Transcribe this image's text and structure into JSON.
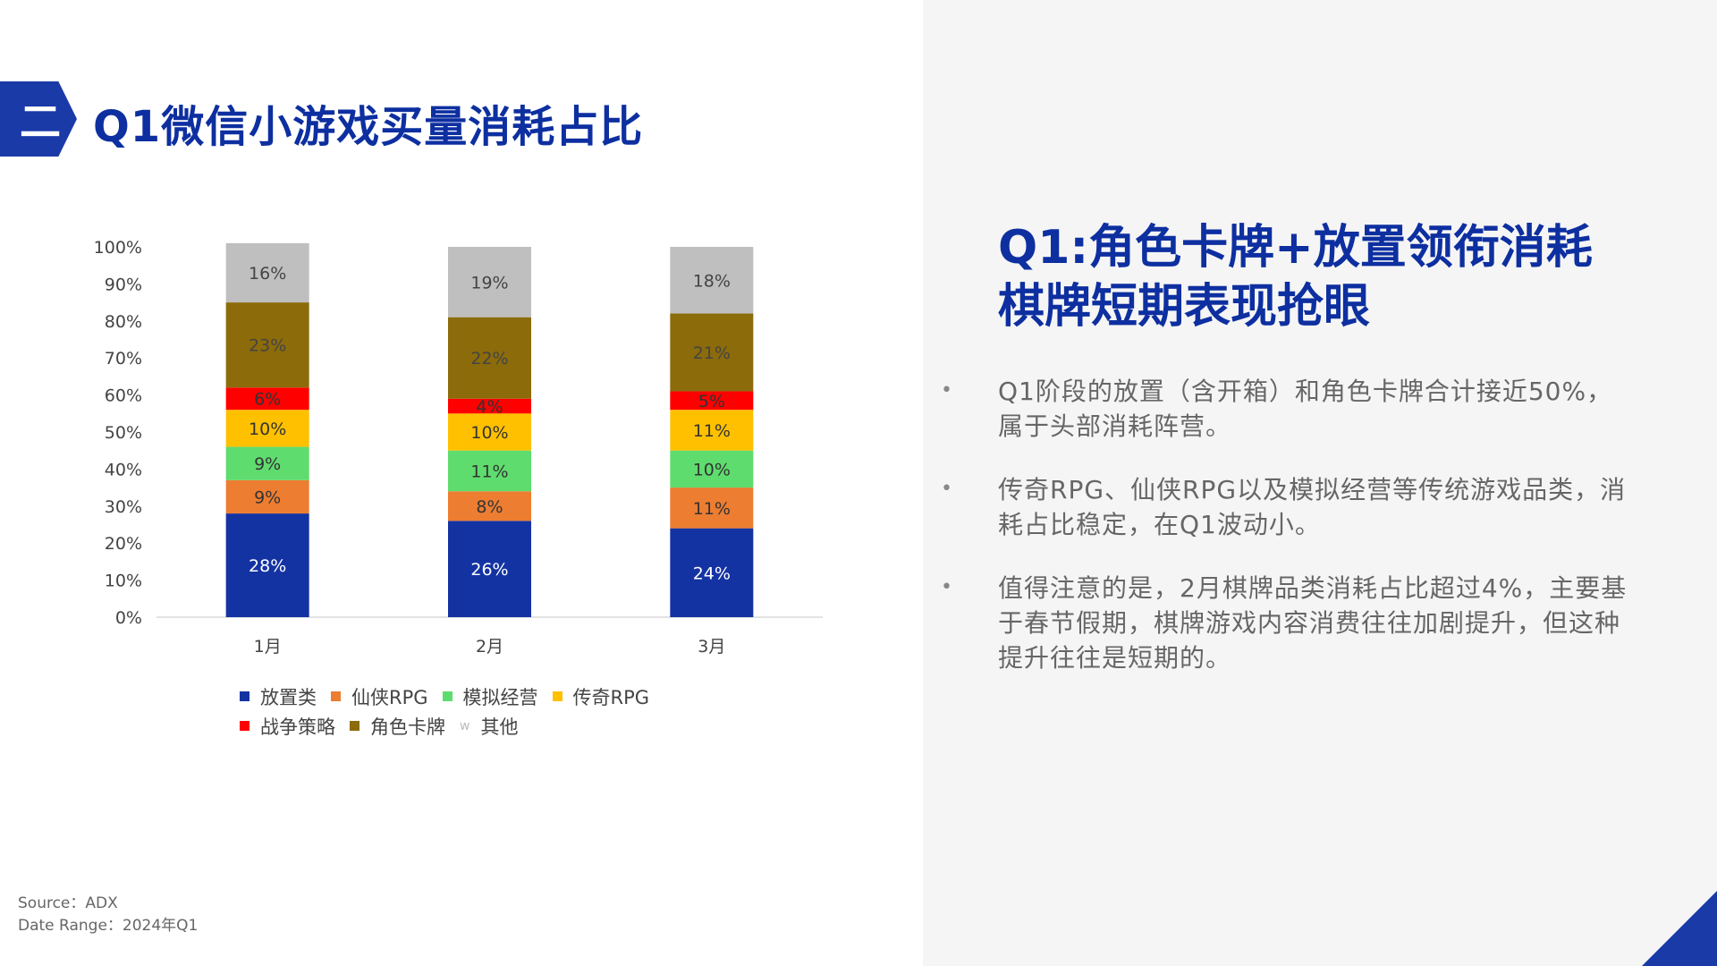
{
  "header": {
    "badge": "二",
    "title": "Q1微信小游戏买量消耗占比"
  },
  "colors": {
    "accent": "#0d2fa0",
    "series": [
      "#1433a3",
      "#ed7d31",
      "#5fdc6e",
      "#ffc000",
      "#ff0000",
      "#8c6b0a",
      "#bfbfbf"
    ]
  },
  "chart_data": {
    "type": "bar",
    "stacked": true,
    "categories": [
      "1月",
      "2月",
      "3月"
    ],
    "ylim": [
      0,
      100
    ],
    "yticks": [
      "0%",
      "10%",
      "20%",
      "30%",
      "40%",
      "50%",
      "60%",
      "70%",
      "80%",
      "90%",
      "100%"
    ],
    "series": [
      {
        "name": "放置类",
        "values": [
          28,
          26,
          24
        ],
        "labels": [
          "28%",
          "26%",
          "24%"
        ]
      },
      {
        "name": "仙侠RPG",
        "values": [
          9,
          8,
          11
        ],
        "labels": [
          "9%",
          "8%",
          "11%"
        ]
      },
      {
        "name": "模拟经营",
        "values": [
          9,
          11,
          10
        ],
        "labels": [
          "9%",
          "11%",
          "10%"
        ]
      },
      {
        "name": "传奇RPG",
        "values": [
          10,
          10,
          11
        ],
        "labels": [
          "10%",
          "10%",
          "11%"
        ]
      },
      {
        "name": "战争策略",
        "values": [
          6,
          4,
          5
        ],
        "labels": [
          "6%",
          "4%",
          "5%"
        ]
      },
      {
        "name": "角色卡牌",
        "values": [
          23,
          22,
          21
        ],
        "labels": [
          "23%",
          "22%",
          "21%"
        ]
      },
      {
        "name": "其他",
        "values": [
          16,
          19,
          18
        ],
        "labels": [
          "16%",
          "19%",
          "18%"
        ]
      }
    ],
    "legend_position": "bottom",
    "grid": false
  },
  "legend": {
    "row1": [
      "放置类",
      "仙侠RPG",
      "模拟经营",
      "传奇RPG"
    ],
    "row2": [
      "战争策略",
      "角色卡牌",
      "其他"
    ],
    "other_marker": "w"
  },
  "source": {
    "line1": "Source：ADX",
    "line2": "Date Range：2024年Q1"
  },
  "panel": {
    "headline_line1": "Q1:角色卡牌+放置领衔消耗",
    "headline_line2": "棋牌短期表现抢眼",
    "bullet_symbol": "•",
    "bullets": [
      "Q1阶段的放置（含开箱）和角色卡牌合计接近50%，属于头部消耗阵营。",
      "传奇RPG、仙侠RPG以及模拟经营等传统游戏品类，消耗占比稳定，在Q1波动小。",
      "值得注意的是，2月棋牌品类消耗占比超过4%，主要基于春节假期，棋牌游戏内容消费往往加剧提升，但这种提升往往是短期的。"
    ]
  }
}
